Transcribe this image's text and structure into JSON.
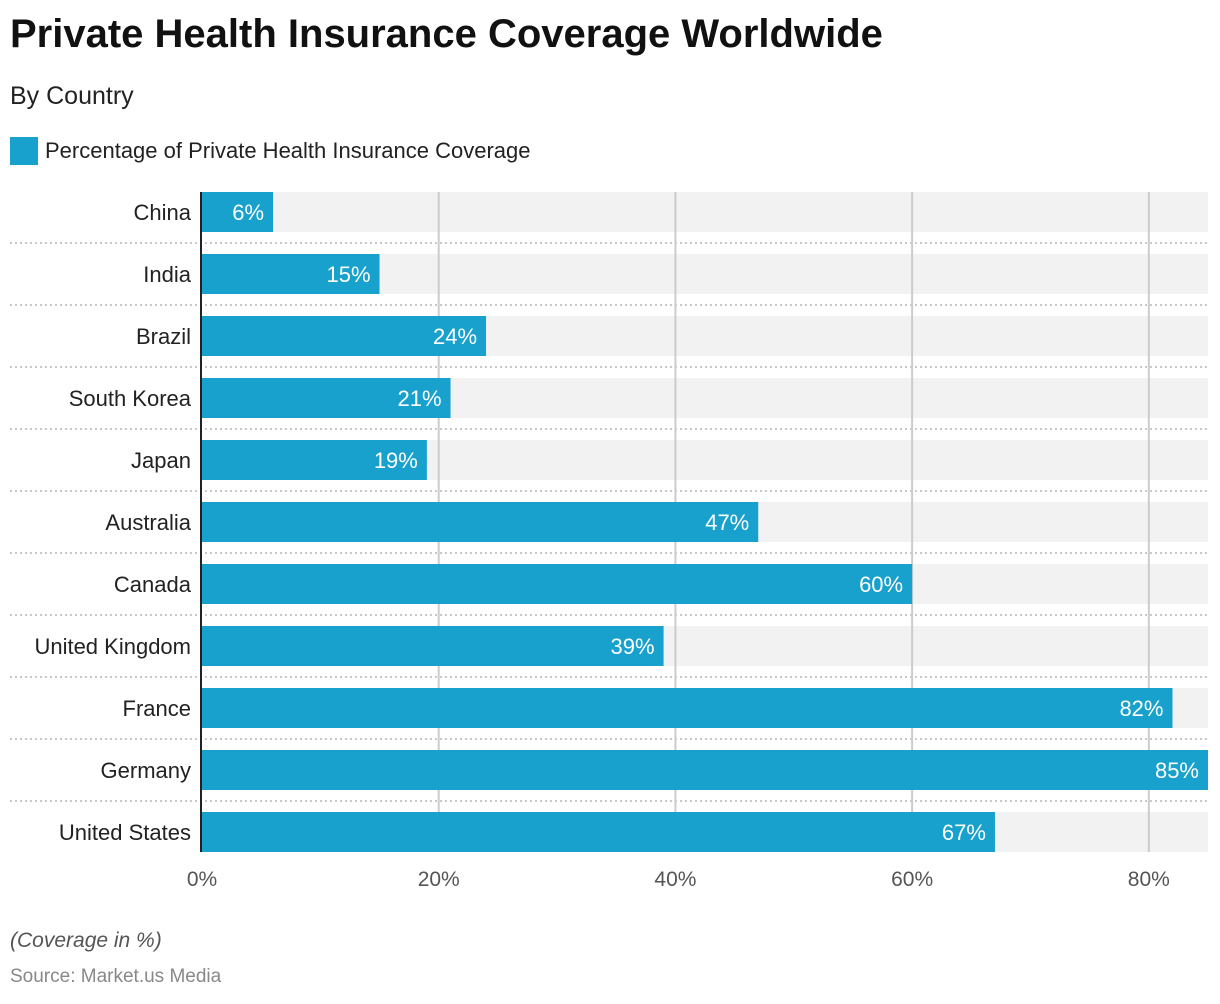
{
  "title": "Private Health Insurance Coverage Worldwide",
  "subtitle": "By Country",
  "note": "(Coverage in %)",
  "source": "Source: Market.us Media",
  "colors": {
    "bar": "#18A1CD",
    "track": "#F2F2F2",
    "grid": "#CCCCCC"
  },
  "chart_data": {
    "type": "bar",
    "orientation": "horizontal",
    "categories": [
      "China",
      "India",
      "Brazil",
      "South Korea",
      "Japan",
      "Australia",
      "Canada",
      "United Kingdom",
      "France",
      "Germany",
      "United States"
    ],
    "series": [
      {
        "name": "Percentage of Private Health Insurance Coverage",
        "values": [
          6,
          15,
          24,
          21,
          19,
          47,
          60,
          39,
          82,
          85,
          67
        ]
      }
    ],
    "data_labels": [
      "6%",
      "15%",
      "24%",
      "21%",
      "19%",
      "47%",
      "60%",
      "39%",
      "82%",
      "85%",
      "67%"
    ],
    "xlim": [
      0,
      85
    ],
    "x_ticks": [
      0,
      20,
      40,
      60,
      80
    ],
    "x_tick_labels": [
      "0%",
      "20%",
      "40%",
      "60%",
      "80%"
    ],
    "grid": true,
    "legend": "top-left"
  }
}
